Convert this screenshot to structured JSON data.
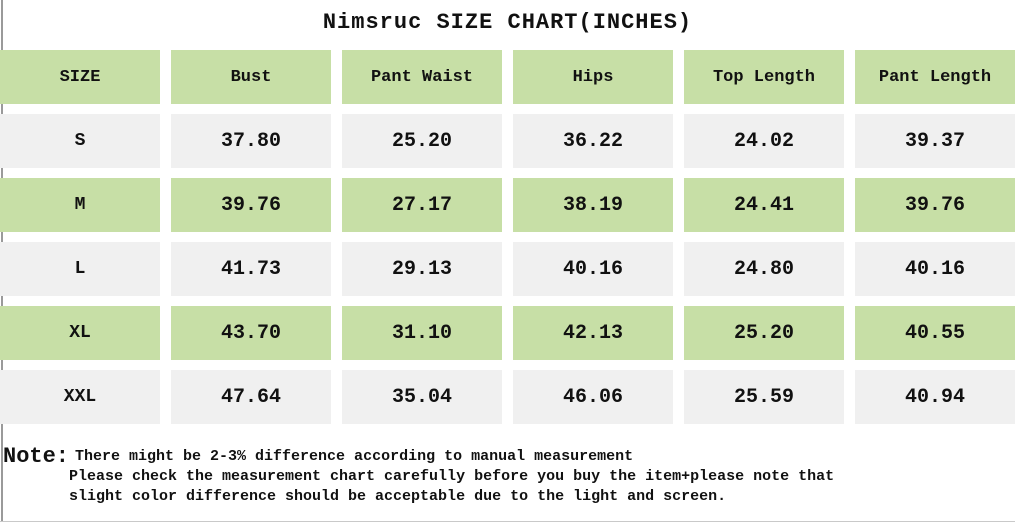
{
  "title": "Nimsruc SIZE CHART(INCHES)",
  "table": {
    "columns": [
      "SIZE",
      "Bust",
      "Pant Waist",
      "Hips",
      "Top Length",
      "Pant Length"
    ],
    "rows": [
      {
        "size": "S",
        "values": [
          "37.80",
          "25.20",
          "36.22",
          "24.02",
          "39.37"
        ]
      },
      {
        "size": "M",
        "values": [
          "39.76",
          "27.17",
          "38.19",
          "24.41",
          "39.76"
        ]
      },
      {
        "size": "L",
        "values": [
          "41.73",
          "29.13",
          "40.16",
          "24.80",
          "40.16"
        ]
      },
      {
        "size": "XL",
        "values": [
          "43.70",
          "31.10",
          "42.13",
          "25.20",
          "40.55"
        ]
      },
      {
        "size": "XXL",
        "values": [
          "47.64",
          "35.04",
          "46.06",
          "25.59",
          "40.94"
        ]
      }
    ]
  },
  "note": {
    "label": "Note:",
    "line1": "There might be 2-3% difference according to manual measurement",
    "line2": "Please check the measurement chart carefully before you buy the item+please note that",
    "line3": "slight color difference should be acceptable due to the light and screen."
  },
  "colors": {
    "green": "#c7dfa6",
    "gray": "#f0f0f0",
    "text": "#111111",
    "edge": "#9a9a9a"
  }
}
